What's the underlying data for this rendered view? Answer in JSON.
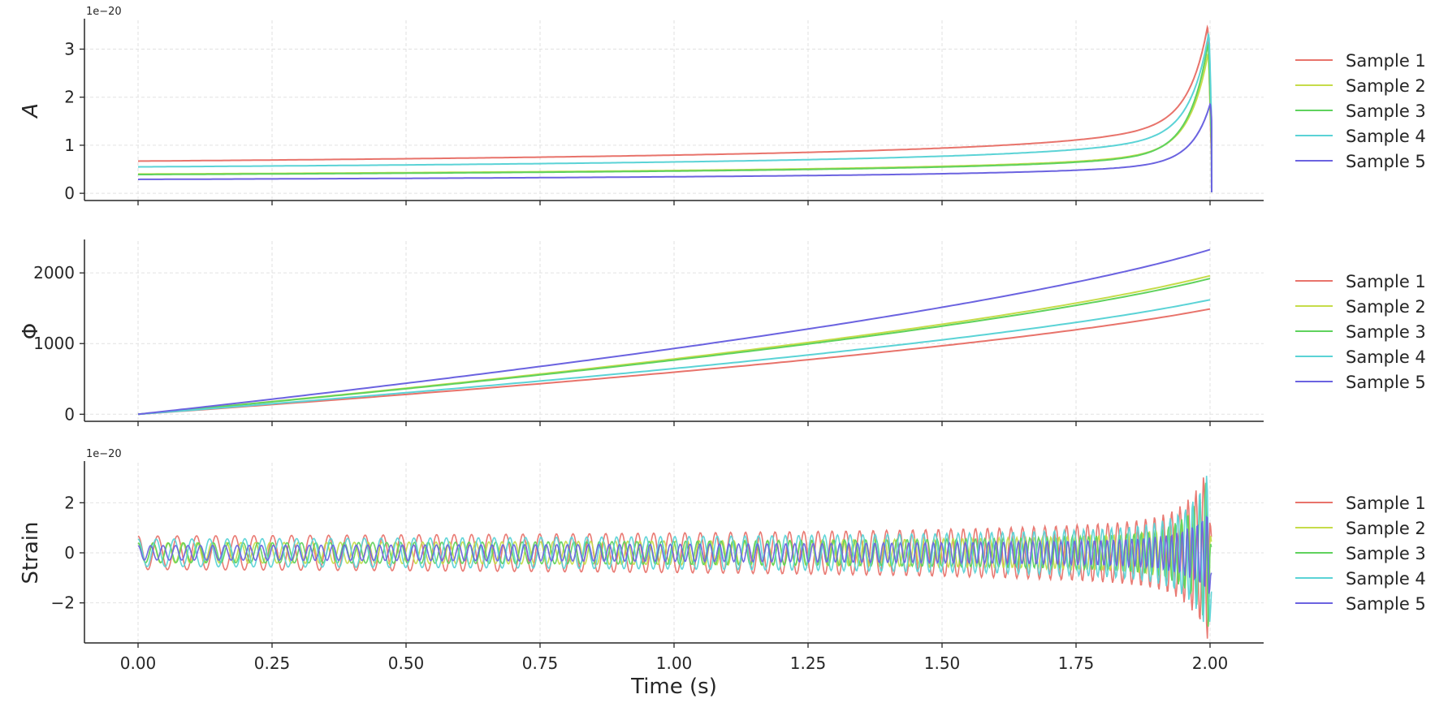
{
  "chart_data": [
    {
      "type": "line",
      "ylabel": "A",
      "ylabel_style": "italic",
      "offset_text": "1e−20",
      "xlim": [
        -0.1,
        2.1
      ],
      "ylim": [
        -0.15,
        3.6
      ],
      "yticks": [
        0,
        1,
        2,
        3
      ],
      "ytick_labels": [
        "0",
        "1",
        "2",
        "3"
      ],
      "grid": true,
      "legend_position": "right",
      "series": [
        {
          "name": "Sample 1",
          "color": "#e8736b",
          "a0": 0.67,
          "peak": 3.45,
          "merger": 1.995,
          "amp_exp": 0.25,
          "t_c": 2.02
        },
        {
          "name": "Sample 2",
          "color": "#c6dc4a",
          "a0": 0.4,
          "peak": 2.9,
          "merger": 1.996,
          "amp_exp": 0.25,
          "t_c": 2.02
        },
        {
          "name": "Sample 3",
          "color": "#5fd25d",
          "a0": 0.39,
          "peak": 3.1,
          "merger": 1.996,
          "amp_exp": 0.25,
          "t_c": 2.02
        },
        {
          "name": "Sample 4",
          "color": "#5bd3d6",
          "a0": 0.55,
          "peak": 3.3,
          "merger": 1.997,
          "amp_exp": 0.25,
          "t_c": 2.02
        },
        {
          "name": "Sample 5",
          "color": "#6b63e0",
          "a0": 0.29,
          "peak": 1.85,
          "merger": 2.0,
          "amp_exp": 0.25,
          "t_c": 2.02
        }
      ]
    },
    {
      "type": "line",
      "ylabel": "Φ",
      "xlim": [
        -0.1,
        2.1
      ],
      "ylim": [
        -100,
        2450
      ],
      "yticks": [
        0,
        1000,
        2000
      ],
      "ytick_labels": [
        "0",
        "1000",
        "2000"
      ],
      "grid": true,
      "legend_position": "right",
      "series": [
        {
          "name": "Sample 1",
          "color": "#e8736b",
          "final": 1490
        },
        {
          "name": "Sample 2",
          "color": "#c6dc4a",
          "final": 1960
        },
        {
          "name": "Sample 3",
          "color": "#5fd25d",
          "final": 1920
        },
        {
          "name": "Sample 4",
          "color": "#5bd3d6",
          "final": 1620
        },
        {
          "name": "Sample 5",
          "color": "#6b63e0",
          "final": 2330
        }
      ]
    },
    {
      "type": "line",
      "ylabel": "Strain",
      "xlabel": "Time (s)",
      "offset_text": "1e−20",
      "xlim": [
        -0.1,
        2.1
      ],
      "ylim": [
        -3.6,
        3.6
      ],
      "yticks": [
        -2,
        0,
        2
      ],
      "ytick_labels": [
        "−2",
        "0",
        "2"
      ],
      "xticks": [
        0,
        0.25,
        0.5,
        0.75,
        1.0,
        1.25,
        1.5,
        1.75,
        2.0
      ],
      "xtick_labels": [
        "0.00",
        "0.25",
        "0.50",
        "0.75",
        "1.00",
        "1.25",
        "1.50",
        "1.75",
        "2.00"
      ],
      "grid": true,
      "legend_position": "right",
      "series": [
        {
          "name": "Sample 1",
          "color": "#e8736b"
        },
        {
          "name": "Sample 2",
          "color": "#c6dc4a"
        },
        {
          "name": "Sample 3",
          "color": "#5fd25d"
        },
        {
          "name": "Sample 4",
          "color": "#5bd3d6"
        },
        {
          "name": "Sample 5",
          "color": "#6b63e0"
        }
      ]
    }
  ]
}
